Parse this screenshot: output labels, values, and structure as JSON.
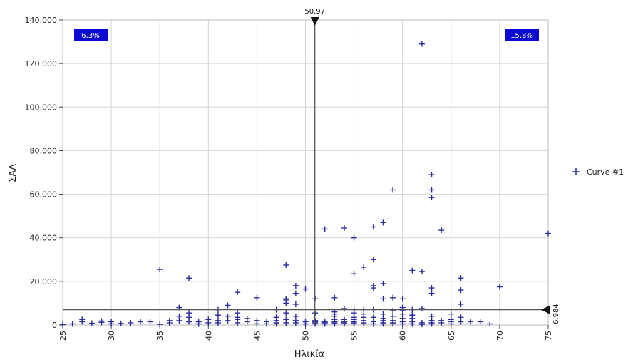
{
  "chart_data": {
    "type": "scatter",
    "title": "",
    "xlabel": "Ηλικία",
    "ylabel": "ΣΑΛ",
    "xlim": [
      25,
      75
    ],
    "ylim": [
      0,
      140000
    ],
    "x_ticks": [
      25,
      30,
      35,
      40,
      45,
      50,
      55,
      60,
      65,
      70,
      75
    ],
    "x_tick_labels": [
      "25",
      "30",
      "35",
      "40",
      "45",
      "50",
      "55",
      "60",
      "65",
      "70",
      "75"
    ],
    "y_ticks": [
      0,
      20000,
      40000,
      60000,
      80000,
      100000,
      120000,
      140000
    ],
    "y_tick_labels": [
      "0",
      "20.000",
      "40.000",
      "60.000",
      "80.000",
      "100.000",
      "120.000",
      "140.000"
    ],
    "grid": true,
    "legend_position": "right",
    "marker_color": "#2a2aa0",
    "vertical_line": {
      "x": 50.97,
      "label": "50,97"
    },
    "horizontal_line": {
      "y": 6984,
      "label": "6.984"
    },
    "quadrant_labels": {
      "top_left": "6,3%",
      "top_right": "15,8%",
      "color": "#0a0ad0"
    },
    "series": [
      {
        "name": "Curve #1",
        "points": [
          [
            25,
            200
          ],
          [
            26,
            500
          ],
          [
            27,
            1500
          ],
          [
            27,
            2500
          ],
          [
            28,
            800
          ],
          [
            29,
            1200
          ],
          [
            29,
            1800
          ],
          [
            30,
            500
          ],
          [
            30,
            1500
          ],
          [
            31,
            700
          ],
          [
            32,
            1000
          ],
          [
            33,
            1500
          ],
          [
            34,
            1500
          ],
          [
            35,
            25500
          ],
          [
            35,
            300
          ],
          [
            36,
            1000
          ],
          [
            36,
            2000
          ],
          [
            37,
            8000
          ],
          [
            37,
            4000
          ],
          [
            37,
            2000
          ],
          [
            38,
            21500
          ],
          [
            38,
            5500
          ],
          [
            38,
            3500
          ],
          [
            38,
            1500
          ],
          [
            39,
            1500
          ],
          [
            39,
            500
          ],
          [
            40,
            2500
          ],
          [
            40,
            1000
          ],
          [
            41,
            7000
          ],
          [
            41,
            4500
          ],
          [
            41,
            2000
          ],
          [
            41,
            1000
          ],
          [
            42,
            9000
          ],
          [
            42,
            4000
          ],
          [
            42,
            2000
          ],
          [
            43,
            15000
          ],
          [
            43,
            5500
          ],
          [
            43,
            3500
          ],
          [
            43,
            2500
          ],
          [
            43,
            1000
          ],
          [
            44,
            3000
          ],
          [
            44,
            1500
          ],
          [
            45,
            12500
          ],
          [
            45,
            500
          ],
          [
            45,
            2000
          ],
          [
            46,
            1500
          ],
          [
            46,
            500
          ],
          [
            47,
            7000
          ],
          [
            47,
            3500
          ],
          [
            47,
            2000
          ],
          [
            47,
            1000
          ],
          [
            47,
            500
          ],
          [
            48,
            11500
          ],
          [
            48,
            5500
          ],
          [
            48,
            2500
          ],
          [
            48,
            1000
          ],
          [
            48,
            27500
          ],
          [
            48,
            12000
          ],
          [
            48,
            10000
          ],
          [
            49,
            18000
          ],
          [
            49,
            14500
          ],
          [
            49,
            9500
          ],
          [
            49,
            4000
          ],
          [
            49,
            2000
          ],
          [
            49,
            1000
          ],
          [
            50,
            16500
          ],
          [
            50,
            1500
          ],
          [
            50,
            500
          ],
          [
            51,
            12000
          ],
          [
            51,
            5500
          ],
          [
            51,
            2000
          ],
          [
            51,
            1500
          ],
          [
            51,
            1000
          ],
          [
            51,
            500
          ],
          [
            52,
            44000
          ],
          [
            52,
            1500
          ],
          [
            52,
            1000
          ],
          [
            52,
            500
          ],
          [
            53,
            12500
          ],
          [
            53,
            6000
          ],
          [
            53,
            5000
          ],
          [
            53,
            4000
          ],
          [
            53,
            2500
          ],
          [
            53,
            1500
          ],
          [
            53,
            1000
          ],
          [
            53,
            500
          ],
          [
            54,
            44500
          ],
          [
            54,
            7500
          ],
          [
            54,
            2500
          ],
          [
            54,
            1500
          ],
          [
            54,
            1000
          ],
          [
            54,
            500
          ],
          [
            55,
            40000
          ],
          [
            55,
            23500
          ],
          [
            55,
            7000
          ],
          [
            55,
            5500
          ],
          [
            55,
            3500
          ],
          [
            55,
            2500
          ],
          [
            55,
            1500
          ],
          [
            55,
            1000
          ],
          [
            55,
            500
          ],
          [
            56,
            26500
          ],
          [
            56,
            7000
          ],
          [
            56,
            5000
          ],
          [
            56,
            3500
          ],
          [
            56,
            2000
          ],
          [
            56,
            1000
          ],
          [
            56,
            500
          ],
          [
            57,
            45000
          ],
          [
            57,
            30000
          ],
          [
            57,
            18000
          ],
          [
            57,
            17000
          ],
          [
            57,
            7000
          ],
          [
            57,
            3500
          ],
          [
            57,
            1500
          ],
          [
            57,
            500
          ],
          [
            58,
            47000
          ],
          [
            58,
            19000
          ],
          [
            58,
            12000
          ],
          [
            58,
            5000
          ],
          [
            58,
            3000
          ],
          [
            58,
            2000
          ],
          [
            58,
            1000
          ],
          [
            58,
            500
          ],
          [
            59,
            62000
          ],
          [
            59,
            12500
          ],
          [
            59,
            6500
          ],
          [
            59,
            4000
          ],
          [
            59,
            2000
          ],
          [
            59,
            1000
          ],
          [
            59,
            500
          ],
          [
            60,
            12000
          ],
          [
            60,
            8000
          ],
          [
            60,
            6500
          ],
          [
            60,
            5000
          ],
          [
            60,
            3000
          ],
          [
            60,
            1500
          ],
          [
            60,
            500
          ],
          [
            61,
            25000
          ],
          [
            61,
            7000
          ],
          [
            61,
            4500
          ],
          [
            61,
            3000
          ],
          [
            61,
            1500
          ],
          [
            61,
            500
          ],
          [
            62,
            129000
          ],
          [
            62,
            24500
          ],
          [
            62,
            7500
          ],
          [
            62,
            1000
          ],
          [
            62,
            300
          ],
          [
            63,
            69000
          ],
          [
            63,
            62000
          ],
          [
            63,
            58500
          ],
          [
            63,
            17000
          ],
          [
            63,
            14500
          ],
          [
            63,
            4000
          ],
          [
            63,
            2000
          ],
          [
            63,
            1000
          ],
          [
            63,
            500
          ],
          [
            64,
            43500
          ],
          [
            64,
            2000
          ],
          [
            64,
            1000
          ],
          [
            65,
            5000
          ],
          [
            65,
            2500
          ],
          [
            65,
            1500
          ],
          [
            65,
            500
          ],
          [
            66,
            21500
          ],
          [
            66,
            16000
          ],
          [
            66,
            9500
          ],
          [
            66,
            3500
          ],
          [
            66,
            1500
          ],
          [
            67,
            1500
          ],
          [
            68,
            1500
          ],
          [
            69,
            500
          ],
          [
            70,
            17500
          ],
          [
            75,
            42000
          ]
        ]
      }
    ]
  }
}
